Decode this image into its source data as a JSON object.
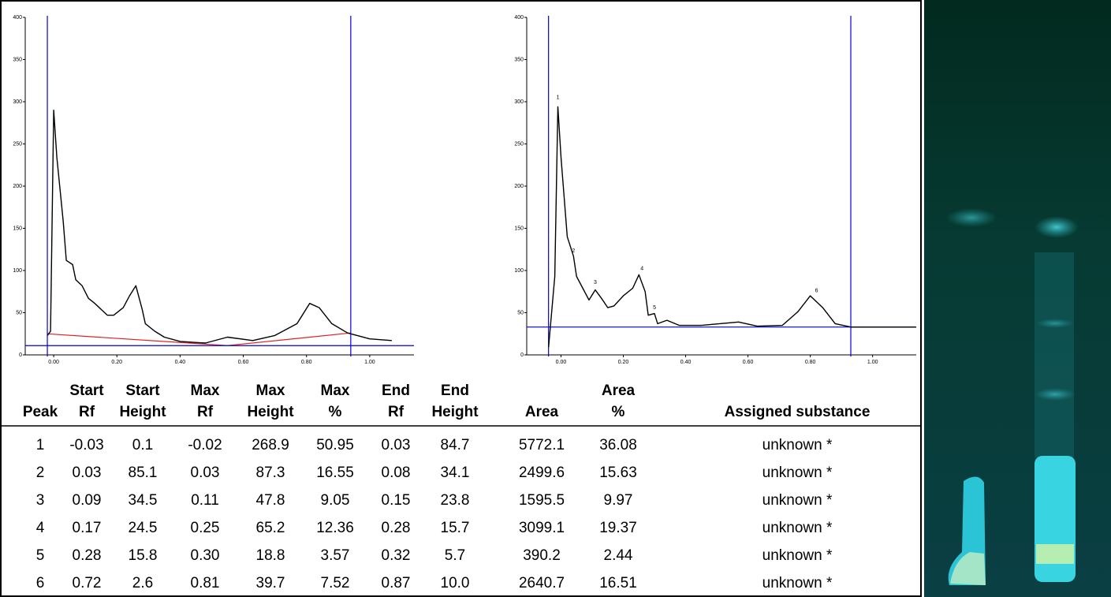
{
  "chart_data": [
    {
      "type": "line",
      "xlim": [
        -0.09,
        1.14
      ],
      "ylim": [
        0,
        400
      ],
      "xticks": [
        {
          "value": 0,
          "label": "0.00"
        },
        {
          "value": 0.2,
          "label": "0.20"
        },
        {
          "value": 0.4,
          "label": "0.40"
        },
        {
          "value": 0.6,
          "label": "0.60"
        },
        {
          "value": 0.8,
          "label": "0.80"
        },
        {
          "value": 1,
          "label": "1.00"
        }
      ],
      "yticks": [
        0,
        50,
        100,
        150,
        200,
        250,
        300,
        350,
        400
      ],
      "x": [
        -0.02,
        -0.01,
        0,
        0.01,
        0.03,
        0.04,
        0.06,
        0.07,
        0.09,
        0.11,
        0.13,
        0.15,
        0.17,
        0.19,
        0.22,
        0.24,
        0.26,
        0.28,
        0.29,
        0.32,
        0.35,
        0.4,
        0.48,
        0.55,
        0.63,
        0.7,
        0.77,
        0.81,
        0.84,
        0.88,
        0.93,
        1,
        1.07
      ],
      "series": [
        {
          "color": "#000000",
          "values": [
            23,
            28,
            290,
            234,
            159,
            112,
            107,
            89,
            82,
            67,
            61,
            54,
            47,
            47,
            56,
            70,
            82,
            54,
            37,
            28,
            21,
            16,
            14,
            21,
            17,
            23,
            37,
            61,
            56,
            37,
            26,
            19,
            17
          ]
        }
      ],
      "baseline": {
        "color": "#e02020",
        "x": [
          -0.02,
          0.55,
          0.94
        ],
        "values": [
          25,
          11,
          26
        ]
      },
      "cursors": {
        "color": "#0000e0",
        "x": [
          -0.02,
          0.94
        ],
        "y": 11
      }
    },
    {
      "type": "line",
      "xlim": [
        -0.11,
        1.14
      ],
      "ylim": [
        0,
        400
      ],
      "xticks": [
        {
          "value": 0,
          "label": "0.00"
        },
        {
          "value": 0.2,
          "label": "0.20"
        },
        {
          "value": 0.4,
          "label": "0.40"
        },
        {
          "value": 0.6,
          "label": "0.60"
        },
        {
          "value": 0.8,
          "label": "0.80"
        },
        {
          "value": 1,
          "label": "1.00"
        }
      ],
      "yticks": [
        0,
        50,
        100,
        150,
        200,
        250,
        300,
        350,
        400
      ],
      "x": [
        -0.04,
        -0.02,
        -0.01,
        0,
        0.02,
        0.04,
        0.05,
        0.07,
        0.09,
        0.11,
        0.13,
        0.15,
        0.17,
        0.2,
        0.23,
        0.25,
        0.27,
        0.28,
        0.3,
        0.31,
        0.34,
        0.38,
        0.45,
        0.57,
        0.63,
        0.71,
        0.76,
        0.8,
        0.84,
        0.88,
        0.93,
        1.14
      ],
      "series": [
        {
          "color": "#000000",
          "values": [
            9,
            93,
            294,
            234,
            140,
            117,
            93,
            79,
            65,
            77,
            67,
            56,
            58,
            70,
            79,
            95,
            75,
            47,
            49,
            37,
            41,
            35,
            35,
            39,
            34,
            35,
            51,
            70,
            56,
            37,
            33,
            33
          ]
        }
      ],
      "cursors": {
        "color": "#0000e0",
        "x": [
          -0.04,
          0.93
        ],
        "y": 33
      },
      "annotations": [
        {
          "text": "1",
          "x": -0.01,
          "y": 305
        },
        {
          "text": "2",
          "x": 0.04,
          "y": 123
        },
        {
          "text": "3",
          "x": 0.11,
          "y": 86
        },
        {
          "text": "4",
          "x": 0.26,
          "y": 102
        },
        {
          "text": "5",
          "x": 0.3,
          "y": 56
        },
        {
          "text": "6",
          "x": 0.82,
          "y": 76
        }
      ]
    }
  ],
  "table": {
    "header": [
      [
        "Peak"
      ],
      [
        "Start",
        "Rf"
      ],
      [
        "Start",
        "Height"
      ],
      [
        "Max",
        "Rf"
      ],
      [
        "Max",
        "Height"
      ],
      [
        "Max",
        "%"
      ],
      [
        "End",
        "Rf"
      ],
      [
        "End",
        "Height"
      ],
      [
        "Area"
      ],
      [
        "Area",
        "%"
      ],
      [
        "Assigned substance"
      ]
    ],
    "rows": [
      [
        "1",
        "-0.03",
        "0.1",
        "-0.02",
        "268.9",
        "50.95",
        "0.03",
        "84.7",
        "5772.1",
        "36.08",
        "unknown *"
      ],
      [
        "2",
        "0.03",
        "85.1",
        "0.03",
        "87.3",
        "16.55",
        "0.08",
        "34.1",
        "2499.6",
        "15.63",
        "unknown *"
      ],
      [
        "3",
        "0.09",
        "34.5",
        "0.11",
        "47.8",
        "9.05",
        "0.15",
        "23.8",
        "1595.5",
        "9.97",
        "unknown *"
      ],
      [
        "4",
        "0.17",
        "24.5",
        "0.25",
        "65.2",
        "12.36",
        "0.28",
        "15.7",
        "3099.1",
        "19.37",
        "unknown *"
      ],
      [
        "5",
        "0.28",
        "15.8",
        "0.30",
        "18.8",
        "3.57",
        "0.32",
        "5.7",
        "390.2",
        "2.44",
        "unknown *"
      ],
      [
        "6",
        "0.72",
        "2.6",
        "0.81",
        "39.7",
        "7.52",
        "0.87",
        "10.0",
        "2640.7",
        "16.51",
        "unknown *"
      ]
    ]
  }
}
